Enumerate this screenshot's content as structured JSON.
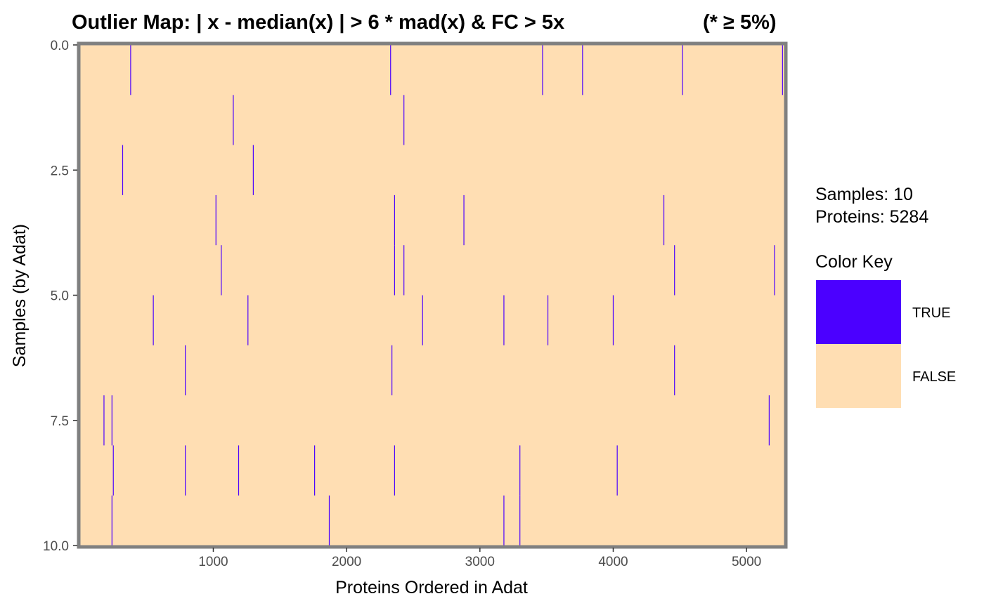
{
  "chart_data": {
    "type": "heatmap",
    "title": "Outlier Map: | x - median(x) | > 6 * mad(x) & FC > 5x",
    "title_note": "(* ≥ 5%)",
    "xlabel": "Proteins Ordered in Adat",
    "ylabel": "Samples (by Adat)",
    "xlim": [
      1,
      5284
    ],
    "ylim": [
      0,
      10
    ],
    "y_reversed": true,
    "x_ticks": [
      1000,
      2000,
      3000,
      4000,
      5000
    ],
    "x_tick_labels": [
      "1000",
      "2000",
      "3000",
      "4000",
      "5000"
    ],
    "y_ticks": [
      0,
      2.5,
      5,
      7.5,
      10
    ],
    "y_tick_labels": [
      "0.0",
      "2.5",
      "5.0",
      "7.5",
      "10.0"
    ],
    "background_color": "#FFDEB3",
    "outlier_color": "#4B00FF",
    "border_color": "#808080",
    "samples": 10,
    "proteins": 5284,
    "outliers": [
      {
        "sample": 1,
        "proteins": [
          380,
          2330,
          3470,
          3770,
          4520,
          5270
        ]
      },
      {
        "sample": 2,
        "proteins": [
          1150,
          2430
        ]
      },
      {
        "sample": 3,
        "proteins": [
          320,
          1300
        ]
      },
      {
        "sample": 4,
        "proteins": [
          1020,
          2360,
          2880,
          4380
        ]
      },
      {
        "sample": 5,
        "proteins": [
          1060,
          2360,
          2430,
          4460,
          5210
        ]
      },
      {
        "sample": 6,
        "proteins": [
          550,
          1260,
          2570,
          3180,
          3510,
          4000
        ]
      },
      {
        "sample": 7,
        "proteins": [
          790,
          2340,
          4460
        ]
      },
      {
        "sample": 8,
        "proteins": [
          180,
          240,
          5170
        ]
      },
      {
        "sample": 9,
        "proteins": [
          250,
          790,
          1190,
          1760,
          2360,
          3300,
          4030
        ]
      },
      {
        "sample": 10,
        "proteins": [
          240,
          1870,
          3180,
          3300
        ]
      }
    ]
  },
  "legend": {
    "samples_text": "Samples: 10",
    "proteins_text": "Proteins: 5284",
    "title": "Color Key",
    "items": [
      {
        "label": "TRUE",
        "color": "#4B00FF"
      },
      {
        "label": "FALSE",
        "color": "#FFDEB3"
      }
    ]
  }
}
